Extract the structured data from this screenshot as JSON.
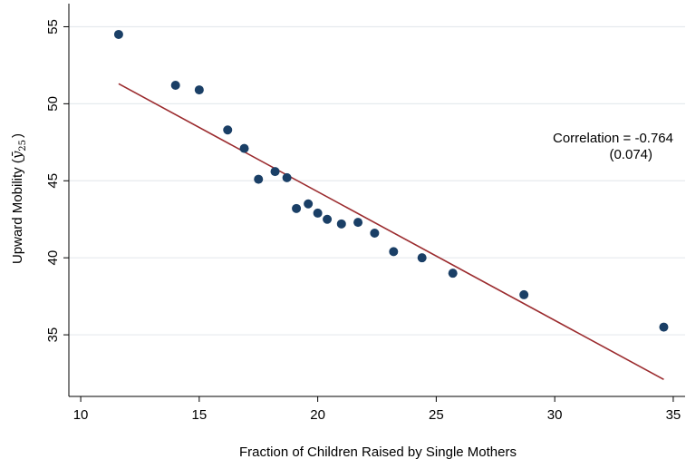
{
  "chart_data": {
    "type": "scatter",
    "title": "",
    "xlabel": "Fraction of Children Raised by Single Mothers",
    "ylabel_main": "Upward Mobility (",
    "ylabel_symbol": "ȳ",
    "ylabel_sub": "25",
    "ylabel_close": ")",
    "xlim": [
      9.5,
      35.5
    ],
    "ylim": [
      31,
      56.5
    ],
    "xticks": [
      10,
      15,
      20,
      25,
      30,
      35
    ],
    "xtick_labels": [
      "10",
      "15",
      "20",
      "25",
      "30",
      "35"
    ],
    "yticks": [
      35,
      40,
      45,
      50,
      55
    ],
    "ytick_labels": [
      "35",
      "40",
      "45",
      "50",
      "55"
    ],
    "grid": "horizontal",
    "points": [
      {
        "x": 11.6,
        "y": 54.5
      },
      {
        "x": 14.0,
        "y": 51.2
      },
      {
        "x": 15.0,
        "y": 50.9
      },
      {
        "x": 16.2,
        "y": 48.3
      },
      {
        "x": 16.9,
        "y": 47.1
      },
      {
        "x": 17.5,
        "y": 45.1
      },
      {
        "x": 18.2,
        "y": 45.6
      },
      {
        "x": 18.7,
        "y": 45.2
      },
      {
        "x": 19.1,
        "y": 43.2
      },
      {
        "x": 19.6,
        "y": 43.5
      },
      {
        "x": 20.0,
        "y": 42.9
      },
      {
        "x": 20.4,
        "y": 42.5
      },
      {
        "x": 21.0,
        "y": 42.2
      },
      {
        "x": 21.7,
        "y": 42.3
      },
      {
        "x": 22.4,
        "y": 41.6
      },
      {
        "x": 23.2,
        "y": 40.4
      },
      {
        "x": 24.4,
        "y": 40.0
      },
      {
        "x": 25.7,
        "y": 39.0
      },
      {
        "x": 28.7,
        "y": 37.6
      },
      {
        "x": 34.6,
        "y": 35.5
      }
    ],
    "fit_line": {
      "x": [
        11.6,
        34.6
      ],
      "y": [
        51.3,
        32.1
      ]
    },
    "annotation_line1": "Correlation = -0.764",
    "annotation_line2": "(0.074)",
    "colors": {
      "points": "#1a3f66",
      "fit_line": "#9b2b2e",
      "grid": "#e6eaee",
      "axis": "#000000"
    }
  }
}
